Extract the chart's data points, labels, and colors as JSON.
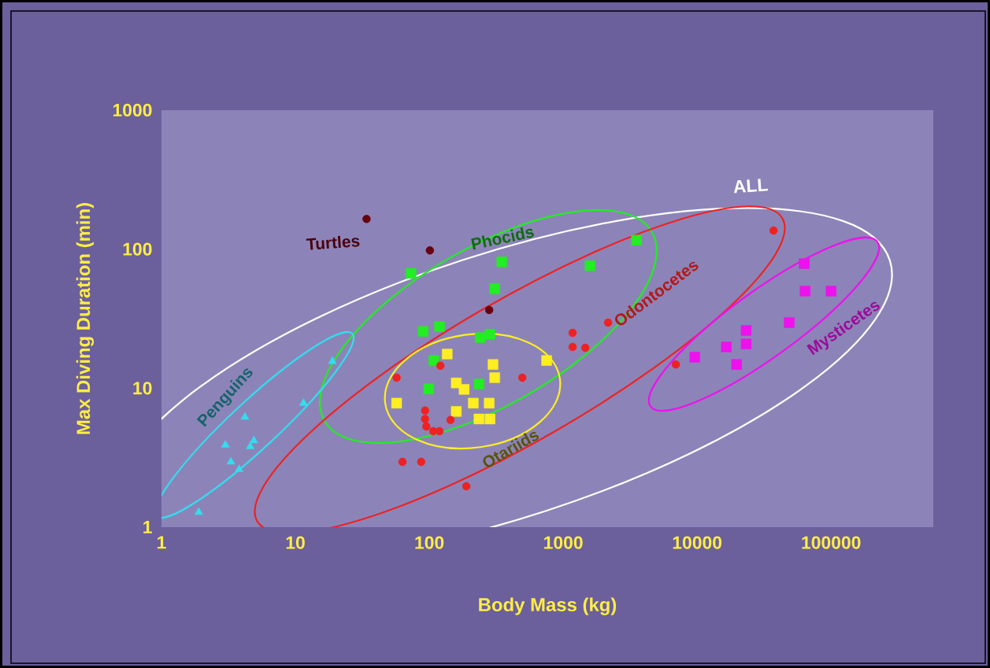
{
  "chart_data": {
    "type": "scatter",
    "xlabel": "Body Mass (kg)",
    "ylabel": "Max Diving Duration (min)",
    "log": "xy",
    "xlim": [
      1,
      580000
    ],
    "ylim": [
      1,
      1000
    ],
    "xticks": [
      1,
      10,
      100,
      1000,
      10000,
      100000
    ],
    "yticks": [
      1,
      10,
      100,
      1000
    ],
    "annotations": [
      "ALL"
    ],
    "series": [
      {
        "name": "Penguins",
        "color": "#33ddee",
        "marker": "triangle",
        "x": [
          18.9,
          11.5,
          4.2,
          4.9,
          4.6,
          3.0,
          3.3,
          3.8,
          1.9
        ],
        "values": [
          15.6,
          7.8,
          6.2,
          4.2,
          3.8,
          3.9,
          2.95,
          2.6,
          1.28
        ]
      },
      {
        "name": "Turtles",
        "color": "#660011",
        "marker": "circle",
        "x": [
          34,
          101,
          280
        ],
        "values": [
          165,
          98,
          36.5
        ]
      },
      {
        "name": "Phocids",
        "color": "#22ee22",
        "marker": "square",
        "x": [
          73,
          348,
          1585,
          3524,
          308,
          90,
          119,
          240,
          284,
          108,
          99,
          235
        ],
        "values": [
          67,
          81,
          76,
          116,
          52,
          25.6,
          27.7,
          23.1,
          24.4,
          15.8,
          9.9,
          10.7
        ]
      },
      {
        "name": "Otariids",
        "color": "#ffee22",
        "marker": "square",
        "x": [
          136,
          299,
          308,
          752,
          57,
          159,
          182,
          213,
          280,
          159,
          235,
          284
        ],
        "values": [
          17.6,
          14.8,
          11.9,
          15.8,
          7.8,
          10.9,
          9.8,
          7.8,
          7.8,
          6.8,
          6.0,
          6.0
        ]
      },
      {
        "name": "Odontocetes",
        "color": "#ee2222",
        "marker": "circle",
        "x": [
          57,
          121,
          495,
          1175,
          1175,
          1462,
          2163,
          93,
          93,
          95,
          107,
          119,
          144,
          63,
          87,
          189,
          37200,
          6930
        ],
        "values": [
          11.9,
          14.5,
          11.9,
          25,
          19.8,
          19.5,
          29.6,
          6.9,
          6.0,
          5.3,
          4.9,
          4.9,
          5.9,
          2.95,
          2.95,
          1.97,
          136,
          14.8
        ]
      },
      {
        "name": "Mysticetes",
        "color": "#ee11ee",
        "marker": "square",
        "x": [
          63100,
          64000,
          100000,
          48700,
          23200,
          23200,
          16500,
          19700,
          9600
        ],
        "values": [
          78.7,
          49.9,
          49.9,
          29.6,
          26,
          20.8,
          19.8,
          14.8,
          16.7
        ]
      }
    ]
  }
}
